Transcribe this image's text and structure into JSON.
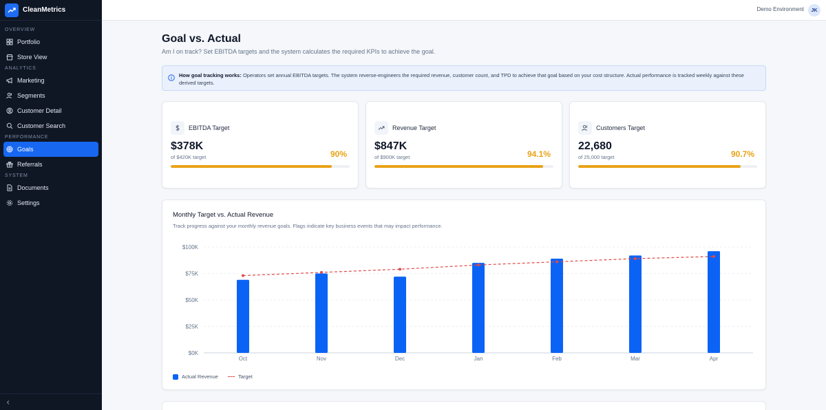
{
  "app": {
    "name": "CleanMetrics"
  },
  "topbar": {
    "environment": "Demo Environment",
    "avatar_initials": "JK"
  },
  "sidebar": {
    "sections": [
      {
        "label": "OVERVIEW",
        "items": [
          {
            "label": "Portfolio",
            "icon": "grid-icon"
          },
          {
            "label": "Store View",
            "icon": "store-icon"
          }
        ]
      },
      {
        "label": "ANALYTICS",
        "items": [
          {
            "label": "Marketing",
            "icon": "megaphone-icon"
          },
          {
            "label": "Segments",
            "icon": "users-icon"
          },
          {
            "label": "Customer Detail",
            "icon": "user-circle-icon"
          },
          {
            "label": "Customer Search",
            "icon": "search-icon"
          }
        ]
      },
      {
        "label": "PERFORMANCE",
        "items": [
          {
            "label": "Goals",
            "icon": "target-icon",
            "active": true
          },
          {
            "label": "Referrals",
            "icon": "gift-icon"
          }
        ]
      },
      {
        "label": "SYSTEM",
        "items": [
          {
            "label": "Documents",
            "icon": "document-icon"
          },
          {
            "label": "Settings",
            "icon": "gear-icon"
          }
        ]
      }
    ]
  },
  "page": {
    "title": "Goal vs. Actual",
    "subtitle": "Am I on track? Set EBITDA targets and the system calculates the required KPIs to achieve the goal."
  },
  "info": {
    "heading": "How goal tracking works:",
    "body": " Operators set annual EBITDA targets. The system reverse-engineers the required revenue, customer count, and TPD to achieve that goal based on your cost structure. Actual performance is tracked weekly against these derived targets."
  },
  "kpis": [
    {
      "label": "EBITDA Target",
      "value": "$378K",
      "sub": "of $420K target",
      "pct": "90%",
      "progress": 0.9,
      "icon": "dollar-icon"
    },
    {
      "label": "Revenue Target",
      "value": "$847K",
      "sub": "of $900K target",
      "pct": "94.1%",
      "progress": 0.941,
      "icon": "trending-up-icon"
    },
    {
      "label": "Customers Target",
      "value": "22,680",
      "sub": "of 25,000 target",
      "pct": "90.7%",
      "progress": 0.907,
      "icon": "users-icon"
    }
  ],
  "colors": {
    "accent": "#1767f0",
    "bar": "#0b63f6",
    "target_line": "#e04848",
    "progress": "#e8a317",
    "sidebar_bg": "#0f1624"
  },
  "chart": {
    "title": "Monthly Target vs. Actual Revenue",
    "subtitle": "Track progress against your monthly revenue goals. Flags indicate key business events that may impact performance."
  },
  "chart_data": {
    "type": "bar",
    "categories": [
      "Oct",
      "Nov",
      "Dec",
      "Jan",
      "Feb",
      "Mar",
      "Apr"
    ],
    "series": [
      {
        "name": "Actual Revenue",
        "type": "bar",
        "values": [
          69000,
          75000,
          72000,
          85000,
          89000,
          92000,
          96000
        ]
      },
      {
        "name": "Target",
        "type": "line",
        "style": "dashed",
        "values": [
          73000,
          76000,
          79000,
          83000,
          86000,
          89000,
          91000
        ]
      }
    ],
    "yticks": [
      "$0K",
      "$25K",
      "$50K",
      "$75K",
      "$100K"
    ],
    "ylim": [
      0,
      100000
    ],
    "grid": true,
    "legend": "bottom-left"
  }
}
